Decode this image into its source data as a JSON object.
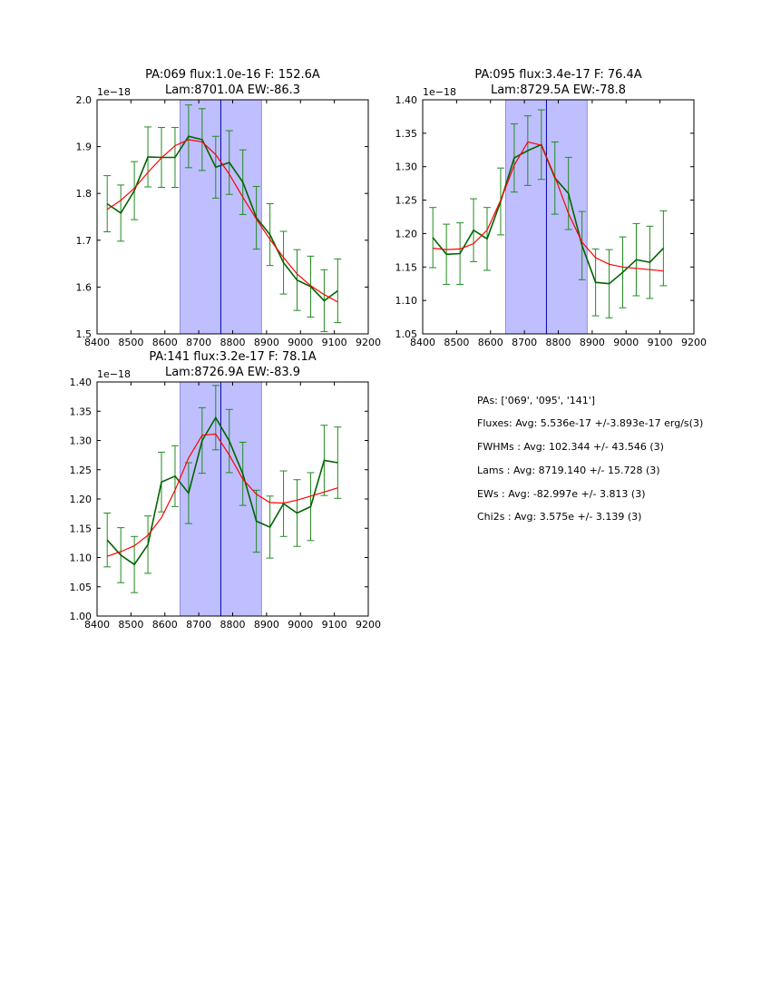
{
  "colors": {
    "data_line": "#006400",
    "error_bar": "#228b22",
    "model_line": "#ff0000",
    "band_fill": "#bfbfff",
    "band_edge": "#7777cc",
    "center_line": "#0000aa"
  },
  "chart_data": [
    {
      "type": "line",
      "title_line1": "PA:069 flux:1.0e-16 F: 152.6A",
      "title_line2": "Lam:8701.0A EW:-86.3",
      "offset_label": "1e−18",
      "xlim": [
        8400,
        9200
      ],
      "ylim": [
        1.5,
        2.0
      ],
      "xticks": [
        "8400",
        "8500",
        "8600",
        "8700",
        "8800",
        "8900",
        "9000",
        "9100",
        "9200"
      ],
      "yticks": [
        "1.5",
        "1.6",
        "1.7",
        "1.8",
        "1.9",
        "2.0"
      ],
      "yticks_values": [
        1.5,
        1.6,
        1.7,
        1.8,
        1.9,
        2.0
      ],
      "band": [
        8645,
        8885
      ],
      "center": 8765,
      "grid": false,
      "x": [
        8430,
        8470,
        8510,
        8550,
        8590,
        8630,
        8670,
        8710,
        8750,
        8790,
        8830,
        8870,
        8910,
        8950,
        8990,
        9030,
        9070,
        9110
      ],
      "series": [
        {
          "values": [
            1.778,
            1.758,
            1.806,
            1.878,
            1.877,
            1.877,
            1.922,
            1.915,
            1.856,
            1.866,
            1.824,
            1.748,
            1.712,
            1.652,
            1.615,
            1.601,
            1.571,
            1.592
          ],
          "yerr": [
            0.06,
            0.06,
            0.062,
            0.064,
            0.064,
            0.064,
            0.067,
            0.066,
            0.066,
            0.068,
            0.069,
            0.067,
            0.066,
            0.067,
            0.065,
            0.065,
            0.066,
            0.068
          ]
        },
        {
          "values": [
            1.766,
            1.785,
            1.811,
            1.845,
            1.876,
            1.902,
            1.915,
            1.91,
            1.883,
            1.841,
            1.792,
            1.745,
            1.702,
            1.663,
            1.628,
            1.603,
            1.584,
            1.568
          ]
        }
      ]
    },
    {
      "type": "line",
      "title_line1": "PA:095 flux:3.4e-17 F: 76.4A",
      "title_line2": "Lam:8729.5A EW:-78.8",
      "offset_label": "1e−18",
      "xlim": [
        8400,
        9200
      ],
      "ylim": [
        1.05,
        1.4
      ],
      "xticks": [
        "8400",
        "8500",
        "8600",
        "8700",
        "8800",
        "8900",
        "9000",
        "9100",
        "9200"
      ],
      "yticks": [
        "1.05",
        "1.10",
        "1.15",
        "1.20",
        "1.25",
        "1.30",
        "1.35",
        "1.40"
      ],
      "yticks_values": [
        1.05,
        1.1,
        1.15,
        1.2,
        1.25,
        1.3,
        1.35,
        1.4
      ],
      "band": [
        8645,
        8885
      ],
      "center": 8765,
      "grid": false,
      "x": [
        8430,
        8470,
        8510,
        8550,
        8590,
        8630,
        8670,
        8710,
        8750,
        8790,
        8830,
        8870,
        8910,
        8950,
        8990,
        9030,
        9070,
        9110
      ],
      "series": [
        {
          "values": [
            1.194,
            1.169,
            1.17,
            1.205,
            1.192,
            1.248,
            1.313,
            1.324,
            1.333,
            1.283,
            1.26,
            1.182,
            1.127,
            1.125,
            1.142,
            1.161,
            1.157,
            1.178
          ],
          "yerr": [
            0.045,
            0.045,
            0.046,
            0.047,
            0.047,
            0.05,
            0.051,
            0.052,
            0.052,
            0.054,
            0.054,
            0.051,
            0.05,
            0.051,
            0.053,
            0.054,
            0.054,
            0.056
          ]
        },
        {
          "values": [
            1.178,
            1.176,
            1.177,
            1.185,
            1.205,
            1.25,
            1.302,
            1.337,
            1.332,
            1.285,
            1.23,
            1.187,
            1.164,
            1.154,
            1.15,
            1.148,
            1.146,
            1.144
          ]
        }
      ]
    },
    {
      "type": "line",
      "title_line1": "PA:141 flux:3.2e-17 F: 78.1A",
      "title_line2": "Lam:8726.9A EW:-83.9",
      "offset_label": "1e−18",
      "xlim": [
        8400,
        9200
      ],
      "ylim": [
        1.0,
        1.4
      ],
      "xticks": [
        "8400",
        "8500",
        "8600",
        "8700",
        "8800",
        "8900",
        "9000",
        "9100",
        "9200"
      ],
      "yticks": [
        "1.00",
        "1.05",
        "1.10",
        "1.15",
        "1.20",
        "1.25",
        "1.30",
        "1.35",
        "1.40"
      ],
      "yticks_values": [
        1.0,
        1.05,
        1.1,
        1.15,
        1.2,
        1.25,
        1.3,
        1.35,
        1.4
      ],
      "band": [
        8645,
        8885
      ],
      "center": 8765,
      "grid": false,
      "x": [
        8430,
        8470,
        8510,
        8550,
        8590,
        8630,
        8670,
        8710,
        8750,
        8790,
        8830,
        8870,
        8910,
        8950,
        8990,
        9030,
        9070,
        9110
      ],
      "series": [
        {
          "values": [
            1.13,
            1.104,
            1.088,
            1.122,
            1.229,
            1.239,
            1.21,
            1.3,
            1.339,
            1.299,
            1.243,
            1.162,
            1.152,
            1.192,
            1.176,
            1.187,
            1.266,
            1.262
          ],
          "yerr": [
            0.046,
            0.047,
            0.048,
            0.049,
            0.051,
            0.052,
            0.052,
            0.056,
            0.055,
            0.054,
            0.054,
            0.053,
            0.053,
            0.056,
            0.057,
            0.058,
            0.06,
            0.061
          ]
        },
        {
          "values": [
            1.102,
            1.11,
            1.12,
            1.138,
            1.168,
            1.215,
            1.27,
            1.309,
            1.311,
            1.275,
            1.234,
            1.208,
            1.194,
            1.193,
            1.198,
            1.205,
            1.212,
            1.219
          ]
        }
      ]
    }
  ],
  "stats": {
    "pas": "PAs: ['069', '095', '141']",
    "fluxes": "Fluxes: Avg: 5.536e-17 +/-3.893e-17 erg/s(3)",
    "fwhms": "FWHMs : Avg:  102.344 +/-  43.546 (3)",
    "lams": "Lams  : Avg: 8719.140 +/-  15.728 (3)",
    "ews": "EWs   : Avg:  -82.997e +/-   3.813 (3)",
    "chi2s": "Chi2s   : Avg:    3.575e +/-   3.139 (3)"
  }
}
